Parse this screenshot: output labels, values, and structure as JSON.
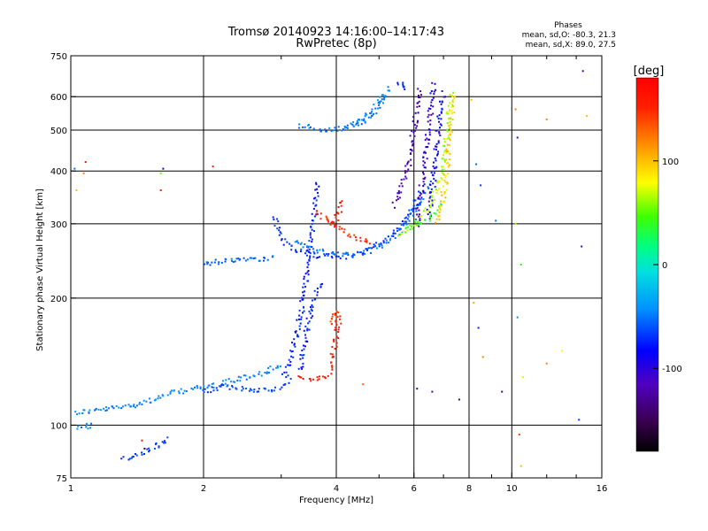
{
  "chart_data": {
    "type": "scatter",
    "title": "Tromsø 20140923 14:16:00–14:17:43",
    "subtitle": "RwPretec (8p)",
    "xlabel": "Frequency [MHz]",
    "ylabel": "Stationary phase Virtual Height [km]",
    "xscale": "log",
    "yscale": "log",
    "xlim": [
      1,
      16
    ],
    "ylim": [
      75,
      750
    ],
    "x_ticks": [
      1,
      2,
      4,
      6,
      8,
      10,
      16
    ],
    "x_tick_labels": [
      "1",
      "2",
      "4",
      "6",
      "8",
      "10",
      "16"
    ],
    "x_minor_ticks": [
      3,
      5,
      7,
      9,
      12,
      14
    ],
    "y_ticks": [
      75,
      100,
      200,
      300,
      400,
      500,
      600,
      750
    ],
    "y_tick_labels": [
      "75",
      "100",
      "200",
      "300",
      "400",
      "500",
      "600",
      "750"
    ],
    "grid": true,
    "phase_info": {
      "heading": "Phases",
      "line_o": "mean, sd,O: -80.3, 21.3",
      "line_x": "mean, sd,X:  89.0, 27.5"
    },
    "colorbar": {
      "label": "[deg]",
      "range": [
        -180,
        180
      ],
      "ticks": [
        100,
        0,
        -100
      ],
      "tick_labels": [
        "100",
        "0",
        "-100"
      ],
      "colormap": "rainbow (black-purple-blue-cyan-green-yellow-orange-red)"
    },
    "traces": [
      {
        "phase": -55,
        "points": [
          [
            1.02,
            107
          ],
          [
            1.1,
            108
          ],
          [
            1.2,
            109
          ],
          [
            1.35,
            111
          ],
          [
            1.5,
            114
          ],
          [
            1.7,
            119
          ],
          [
            1.9,
            122
          ],
          [
            2.1,
            124
          ],
          [
            2.35,
            128
          ],
          [
            2.6,
            131
          ],
          [
            2.8,
            134
          ],
          [
            3.0,
            140
          ]
        ]
      },
      {
        "phase": -55,
        "points": [
          [
            1.03,
            98
          ],
          [
            1.08,
            99
          ],
          [
            1.13,
            100
          ]
        ]
      },
      {
        "phase": -75,
        "points": [
          [
            2.0,
            120
          ],
          [
            2.2,
            123
          ],
          [
            2.45,
            122
          ],
          [
            2.7,
            121
          ],
          [
            2.9,
            122
          ],
          [
            3.05,
            124
          ],
          [
            3.15,
            128
          ]
        ]
      },
      {
        "phase": -80,
        "points": [
          [
            1.32,
            83
          ],
          [
            1.42,
            85
          ],
          [
            1.52,
            88
          ],
          [
            1.62,
            91
          ],
          [
            1.68,
            93
          ]
        ]
      },
      {
        "phase": -90,
        "points": [
          [
            3.05,
            130
          ],
          [
            3.15,
            145
          ],
          [
            3.25,
            165
          ],
          [
            3.35,
            190
          ],
          [
            3.4,
            215
          ],
          [
            3.45,
            240
          ],
          [
            3.5,
            270
          ],
          [
            3.55,
            300
          ],
          [
            3.6,
            340
          ],
          [
            3.65,
            380
          ]
        ]
      },
      {
        "phase": -90,
        "points": [
          [
            3.3,
            135
          ],
          [
            3.4,
            160
          ],
          [
            3.5,
            185
          ],
          [
            3.6,
            205
          ],
          [
            3.7,
            220
          ]
        ]
      },
      {
        "phase": -65,
        "points": [
          [
            2.0,
            240
          ],
          [
            2.2,
            245
          ],
          [
            2.45,
            248
          ],
          [
            2.7,
            248
          ],
          [
            2.9,
            250
          ]
        ]
      },
      {
        "phase": -85,
        "points": [
          [
            2.9,
            310
          ],
          [
            3.0,
            280
          ],
          [
            3.1,
            265
          ],
          [
            3.3,
            258
          ],
          [
            3.6,
            252
          ],
          [
            4.0,
            250
          ],
          [
            4.4,
            253
          ],
          [
            4.8,
            262
          ],
          [
            5.1,
            272
          ],
          [
            5.4,
            285
          ],
          [
            5.7,
            305
          ],
          [
            6.0,
            330
          ],
          [
            6.2,
            360
          ]
        ]
      },
      {
        "phase": -60,
        "points": [
          [
            3.2,
            275
          ],
          [
            3.5,
            262
          ],
          [
            3.9,
            254
          ],
          [
            4.3,
            253
          ],
          [
            4.7,
            258
          ],
          [
            5.1,
            268
          ],
          [
            5.5,
            285
          ],
          [
            5.9,
            310
          ],
          [
            6.2,
            340
          ],
          [
            6.5,
            380
          ]
        ]
      },
      {
        "phase": -120,
        "points": [
          [
            5.4,
            330
          ],
          [
            5.6,
            360
          ],
          [
            5.8,
            400
          ],
          [
            5.9,
            450
          ],
          [
            6.0,
            500
          ],
          [
            6.1,
            560
          ],
          [
            6.2,
            630
          ]
        ]
      },
      {
        "phase": -110,
        "points": [
          [
            6.1,
            300
          ],
          [
            6.2,
            340
          ],
          [
            6.3,
            390
          ],
          [
            6.4,
            450
          ],
          [
            6.5,
            520
          ],
          [
            6.6,
            600
          ],
          [
            6.7,
            650
          ]
        ]
      },
      {
        "phase": -100,
        "points": [
          [
            6.5,
            310
          ],
          [
            6.6,
            360
          ],
          [
            6.7,
            420
          ],
          [
            6.8,
            490
          ],
          [
            6.9,
            560
          ],
          [
            7.0,
            620
          ]
        ]
      },
      {
        "phase": 65,
        "points": [
          [
            5.6,
            285
          ],
          [
            5.9,
            295
          ],
          [
            6.2,
            310
          ],
          [
            6.5,
            330
          ],
          [
            6.8,
            370
          ],
          [
            7.0,
            420
          ],
          [
            7.1,
            480
          ],
          [
            7.2,
            550
          ],
          [
            7.3,
            620
          ]
        ]
      },
      {
        "phase": 35,
        "points": [
          [
            5.7,
            290
          ],
          [
            6.1,
            300
          ],
          [
            6.5,
            310
          ],
          [
            6.8,
            325
          ],
          [
            7.0,
            345
          ]
        ]
      },
      {
        "phase": 95,
        "points": [
          [
            6.8,
            300
          ],
          [
            7.0,
            350
          ],
          [
            7.1,
            400
          ],
          [
            7.2,
            470
          ],
          [
            7.3,
            540
          ],
          [
            7.4,
            610
          ]
        ]
      },
      {
        "phase": -60,
        "points": [
          [
            3.3,
            510
          ],
          [
            3.6,
            505
          ],
          [
            3.9,
            500
          ],
          [
            4.2,
            505
          ],
          [
            4.5,
            515
          ],
          [
            4.8,
            540
          ],
          [
            5.0,
            570
          ],
          [
            5.2,
            610
          ]
        ]
      },
      {
        "phase": -50,
        "points": [
          [
            4.2,
            510
          ],
          [
            4.5,
            525
          ],
          [
            4.8,
            550
          ],
          [
            5.1,
            600
          ],
          [
            5.3,
            630
          ]
        ]
      },
      {
        "phase": -90,
        "points": [
          [
            5.5,
            640
          ],
          [
            5.7,
            645
          ],
          [
            5.8,
            620
          ]
        ]
      },
      {
        "phase": 150,
        "points": [
          [
            3.6,
            320
          ],
          [
            3.85,
            305
          ],
          [
            4.0,
            295
          ],
          [
            4.2,
            285
          ],
          [
            4.4,
            280
          ],
          [
            4.6,
            275
          ],
          [
            4.85,
            270
          ]
        ]
      },
      {
        "phase": 160,
        "points": [
          [
            3.85,
            300
          ],
          [
            4.0,
            310
          ],
          [
            4.1,
            330
          ],
          [
            4.15,
            345
          ]
        ]
      },
      {
        "phase": 155,
        "points": [
          [
            3.3,
            130
          ],
          [
            3.55,
            128
          ],
          [
            3.7,
            129
          ],
          [
            3.85,
            132
          ],
          [
            3.9,
            140
          ],
          [
            3.95,
            150
          ],
          [
            4.0,
            165
          ],
          [
            4.05,
            175
          ],
          [
            4.0,
            185
          ]
        ]
      },
      {
        "phase": 145,
        "points": [
          [
            3.85,
            175
          ],
          [
            3.95,
            180
          ],
          [
            4.0,
            185
          ],
          [
            4.05,
            178
          ]
        ]
      }
    ],
    "scatter_points": [
      {
        "x": 1.08,
        "y": 420,
        "phase": 170
      },
      {
        "x": 1.07,
        "y": 395,
        "phase": 120
      },
      {
        "x": 1.02,
        "y": 405,
        "phase": -60
      },
      {
        "x": 1.03,
        "y": 360,
        "phase": 100
      },
      {
        "x": 1.6,
        "y": 395,
        "phase": 50
      },
      {
        "x": 1.6,
        "y": 360,
        "phase": 150
      },
      {
        "x": 1.62,
        "y": 405,
        "phase": -100
      },
      {
        "x": 2.1,
        "y": 410,
        "phase": 150
      },
      {
        "x": 8.1,
        "y": 590,
        "phase": 100
      },
      {
        "x": 8.3,
        "y": 415,
        "phase": -60
      },
      {
        "x": 8.5,
        "y": 370,
        "phase": -80
      },
      {
        "x": 9.2,
        "y": 305,
        "phase": -60
      },
      {
        "x": 10.2,
        "y": 560,
        "phase": 120
      },
      {
        "x": 10.3,
        "y": 480,
        "phase": -110
      },
      {
        "x": 10.2,
        "y": 300,
        "phase": 60
      },
      {
        "x": 10.5,
        "y": 240,
        "phase": 40
      },
      {
        "x": 12.0,
        "y": 530,
        "phase": 120
      },
      {
        "x": 14.5,
        "y": 690,
        "phase": -120
      },
      {
        "x": 14.4,
        "y": 265,
        "phase": -110
      },
      {
        "x": 14.8,
        "y": 540,
        "phase": 100
      },
      {
        "x": 8.2,
        "y": 195,
        "phase": 110
      },
      {
        "x": 8.4,
        "y": 170,
        "phase": -90
      },
      {
        "x": 8.6,
        "y": 145,
        "phase": 120
      },
      {
        "x": 10.3,
        "y": 180,
        "phase": -50
      },
      {
        "x": 10.6,
        "y": 130,
        "phase": 70
      },
      {
        "x": 12.0,
        "y": 140,
        "phase": 120
      },
      {
        "x": 13.0,
        "y": 150,
        "phase": 80
      },
      {
        "x": 14.2,
        "y": 103,
        "phase": -80
      },
      {
        "x": 6.6,
        "y": 120,
        "phase": -120
      },
      {
        "x": 7.6,
        "y": 115,
        "phase": -140
      },
      {
        "x": 9.5,
        "y": 120,
        "phase": -130
      },
      {
        "x": 10.4,
        "y": 95,
        "phase": 140
      },
      {
        "x": 10.5,
        "y": 80,
        "phase": 100
      },
      {
        "x": 4.6,
        "y": 125,
        "phase": 130
      },
      {
        "x": 6.1,
        "y": 122,
        "phase": -140
      },
      {
        "x": 1.47,
        "y": 88,
        "phase": -160
      },
      {
        "x": 1.45,
        "y": 92,
        "phase": 160
      }
    ]
  }
}
